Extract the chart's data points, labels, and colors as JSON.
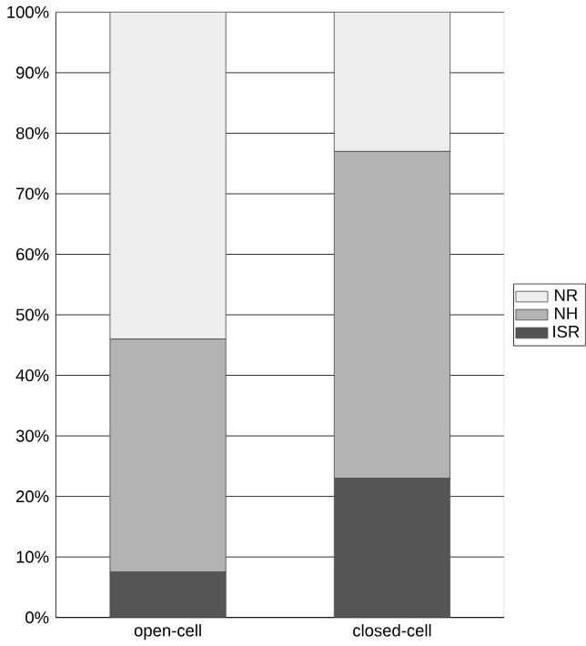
{
  "chart_data": {
    "type": "bar",
    "stacked": true,
    "categories": [
      "open-cell",
      "closed-cell"
    ],
    "series": [
      {
        "name": "ISR",
        "color": "#555555",
        "values": [
          7.5,
          23
        ]
      },
      {
        "name": "NH",
        "color": "#b3b3b3",
        "values": [
          38.5,
          54
        ]
      },
      {
        "name": "NR",
        "color": "#eeeeee",
        "values": [
          54,
          23
        ]
      }
    ],
    "ylim": [
      0,
      100
    ],
    "yticks": [
      {
        "value": 0,
        "label": "0%"
      },
      {
        "value": 10,
        "label": "10%"
      },
      {
        "value": 20,
        "label": "20%"
      },
      {
        "value": 30,
        "label": "30%"
      },
      {
        "value": 40,
        "label": "40%"
      },
      {
        "value": 50,
        "label": "50%"
      },
      {
        "value": 60,
        "label": "60%"
      },
      {
        "value": 70,
        "label": "70%"
      },
      {
        "value": 80,
        "label": "80%"
      },
      {
        "value": 90,
        "label": "90%"
      },
      {
        "value": 100,
        "label": "100%"
      }
    ],
    "grid": "y",
    "legend": "right"
  }
}
